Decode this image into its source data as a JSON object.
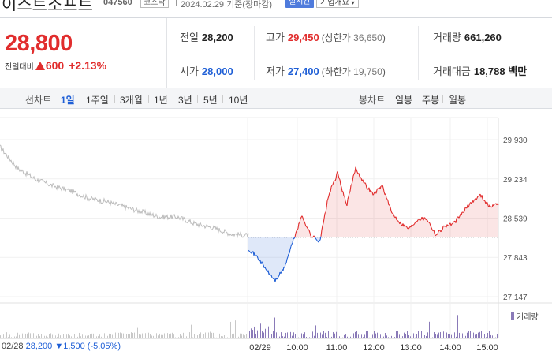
{
  "header": {
    "name": "이스트소프트",
    "code": "047560",
    "market": "코스닥",
    "date_text": "2024.02.29 기준(장마감)",
    "realtime_label": "실시간",
    "overview_label": "기업개요"
  },
  "summary": {
    "price": "28,800",
    "change_label": "전일대비",
    "change_value": "600",
    "change_pct": "+2.13%",
    "prev_label": "전일",
    "prev_value": "28,200",
    "open_label": "시가",
    "open_value": "28,000",
    "high_label": "고가",
    "high_value": "29,450",
    "upper_limit_label": "상한가",
    "upper_limit_value": "36,650",
    "low_label": "저가",
    "low_value": "27,400",
    "lower_limit_label": "하한가",
    "lower_limit_value": "19,750",
    "volume_label": "거래량",
    "volume_value": "661,260",
    "amount_label": "거래대금",
    "amount_value": "18,788",
    "amount_unit": "백만"
  },
  "toolbar": {
    "line_chart_label": "선차트",
    "periods": [
      "1일",
      "1주일",
      "3개월",
      "1년",
      "3년",
      "5년",
      "10년"
    ],
    "selected_period": "1일",
    "candle_label": "봉차트",
    "candles": [
      "일봉",
      "주봉",
      "월봉"
    ]
  },
  "chart": {
    "y_ticks": [
      "29,930",
      "29,234",
      "28,539",
      "27,843",
      "27,147"
    ],
    "x_labels": [
      "02/29",
      "10:00",
      "11:00",
      "12:00",
      "13:00",
      "14:00",
      "15:00"
    ],
    "prev_day_label": "02/28",
    "prev_day_close": "28,200",
    "prev_day_change": "▼1,500",
    "prev_day_pct": "(-5.05%)",
    "volume_legend": "거래량",
    "colors": {
      "up": "#e12d2d",
      "down": "#1f5fd6",
      "prev": "#bbbbbb",
      "volume": "#8a7ab8"
    }
  },
  "chart_data": {
    "type": "line",
    "y_ticks": [
      29930,
      29234,
      28539,
      27843,
      27147
    ],
    "prev_close": 28200,
    "x_labels": [
      "02/29",
      "10:00",
      "11:00",
      "12:00",
      "13:00",
      "14:00",
      "15:00"
    ],
    "series": [
      {
        "values": [
          29800,
          29420,
          29230,
          29110,
          29020,
          28890,
          28830,
          28740,
          28650,
          28560,
          28560,
          28440,
          28370,
          28260,
          28230
        ]
      },
      {
        "values": [
          28000,
          27850,
          27620,
          27430,
          27650,
          28130,
          28580,
          28230,
          28130,
          28950,
          29340,
          28760,
          29430,
          29150,
          28960,
          29120,
          28650,
          28460,
          28350,
          28530,
          28530,
          28240,
          28400,
          28440,
          28640,
          28820,
          28950,
          28740,
          28800
        ]
      }
    ]
  }
}
